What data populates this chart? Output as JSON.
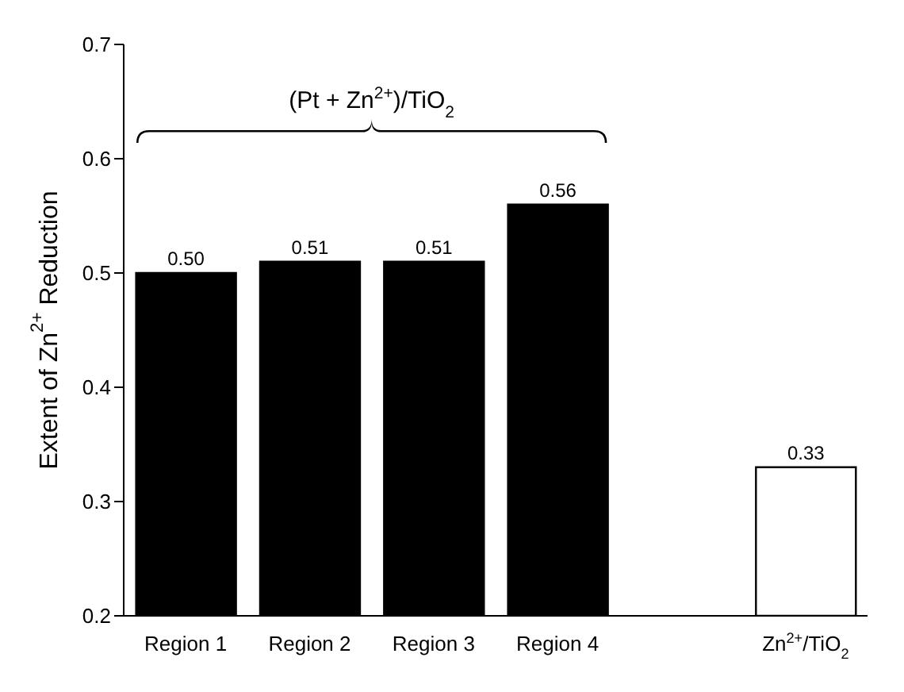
{
  "chart_data": {
    "type": "bar",
    "ylabel": "Extent of Zn$^{2+}$ Reduction",
    "categories": [
      "Region 1",
      "Region 2",
      "Region 3",
      "Region 4",
      null,
      "Zn$^{2+}$/TiO$_{2}$"
    ],
    "values": [
      0.5,
      0.51,
      0.51,
      0.56,
      null,
      0.33
    ],
    "value_labels": [
      "0.50",
      "0.51",
      "0.51",
      "0.56",
      null,
      "0.33"
    ],
    "colors": [
      "#000000",
      "#000000",
      "#000000",
      "#000000",
      "#ffffff",
      "#ffffff"
    ],
    "ylim": [
      0.2,
      0.7
    ],
    "yticks": [
      0.2,
      0.3,
      0.4,
      0.5,
      0.6,
      0.7
    ],
    "annotations": [
      "(Pt + Zn$^{2+}$)/TiO$_{2}$"
    ],
    "grid": false,
    "legend": false
  }
}
